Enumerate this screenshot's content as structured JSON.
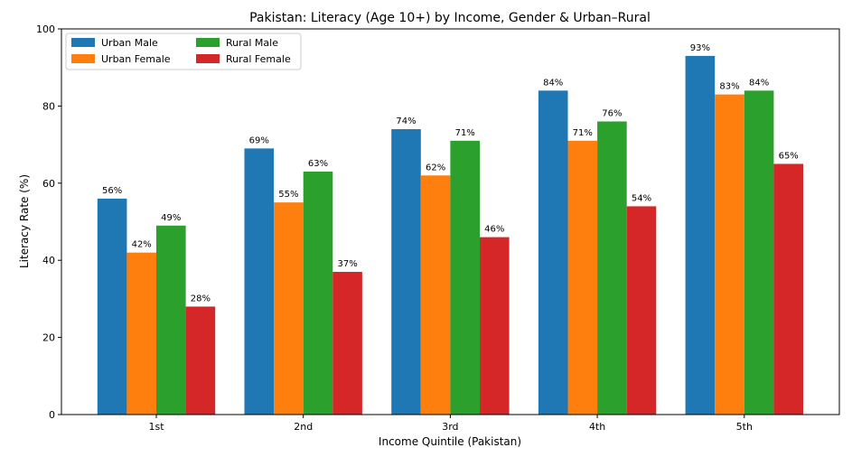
{
  "chart_data": {
    "type": "bar",
    "title": "Pakistan: Literacy (Age 10+) by Income, Gender & Urban–Rural",
    "xlabel": "Income Quintile (Pakistan)",
    "ylabel": "Literacy Rate (%)",
    "ylim": [
      0,
      100
    ],
    "yticks": [
      0,
      20,
      40,
      60,
      80,
      100
    ],
    "categories": [
      "1st",
      "2nd",
      "3rd",
      "4th",
      "5th"
    ],
    "series": [
      {
        "name": "Urban Male",
        "color": "#1f77b4",
        "values": [
          56,
          69,
          74,
          84,
          93
        ]
      },
      {
        "name": "Urban Female",
        "color": "#ff7f0e",
        "values": [
          42,
          55,
          62,
          71,
          83
        ]
      },
      {
        "name": "Rural Male",
        "color": "#2ca02c",
        "values": [
          49,
          63,
          71,
          76,
          84
        ]
      },
      {
        "name": "Rural Female",
        "color": "#d62728",
        "values": [
          28,
          37,
          46,
          54,
          65
        ]
      }
    ],
    "value_label_suffix": "%",
    "legend_position": "top-left",
    "grid": false
  }
}
